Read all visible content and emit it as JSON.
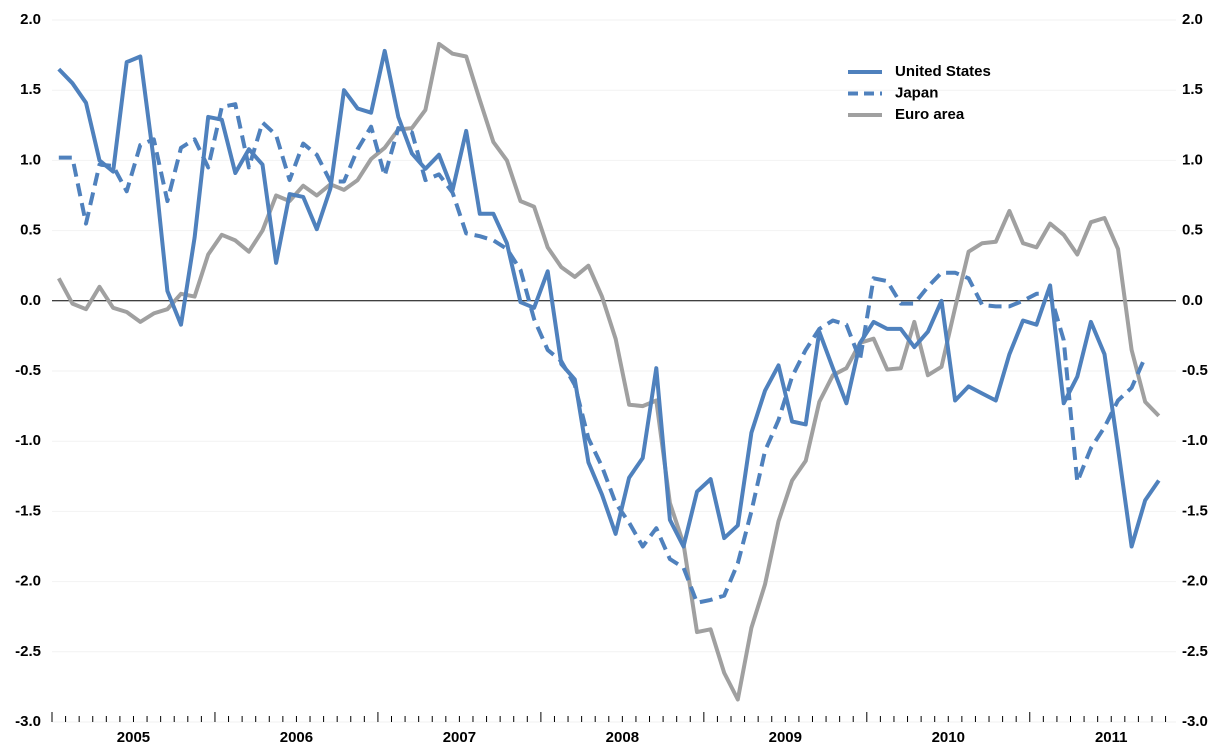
{
  "chart_data": {
    "type": "line",
    "categories": [
      "2005",
      null,
      null,
      null,
      null,
      null,
      null,
      null,
      null,
      null,
      null,
      null,
      "2006",
      null,
      null,
      null,
      null,
      null,
      null,
      null,
      null,
      null,
      null,
      null,
      "2007",
      null,
      null,
      null,
      null,
      null,
      null,
      null,
      null,
      null,
      null,
      null,
      "2008",
      null,
      null,
      null,
      null,
      null,
      null,
      null,
      null,
      null,
      null,
      null,
      "2009",
      null,
      null,
      null,
      null,
      null,
      null,
      null,
      null,
      null,
      null,
      null,
      "2010",
      null,
      null,
      null,
      null,
      null,
      null,
      null,
      null,
      null,
      null,
      null,
      "2011",
      null,
      null,
      null,
      null,
      null,
      null,
      null,
      null,
      null
    ],
    "series": [
      {
        "name": "United States",
        "color": "#4f81bd",
        "style": "solid",
        "values": [
          1.65,
          1.55,
          1.41,
          1.0,
          0.92,
          1.7,
          1.74,
          1.0,
          0.07,
          -0.17,
          0.45,
          1.31,
          1.29,
          0.91,
          1.08,
          0.97,
          0.27,
          0.76,
          0.74,
          0.51,
          0.8,
          1.5,
          1.37,
          1.34,
          1.78,
          1.31,
          1.05,
          0.94,
          1.04,
          0.79,
          1.21,
          0.62,
          0.62,
          0.41,
          -0.01,
          -0.05,
          0.21,
          -0.45,
          -0.56,
          -1.15,
          -1.38,
          -1.66,
          -1.26,
          -1.12,
          -0.48,
          -1.56,
          -1.75,
          -1.36,
          -1.27,
          -1.69,
          -1.6,
          -0.94,
          -0.64,
          -0.46,
          -0.86,
          -0.88,
          -0.22,
          -0.48,
          -0.73,
          -0.3,
          -0.15,
          -0.2,
          -0.2,
          -0.33,
          -0.22,
          0.0,
          -0.71,
          -0.61,
          -0.66,
          -0.71,
          -0.38,
          -0.14,
          -0.17,
          0.11,
          -0.73,
          -0.54,
          -0.15,
          -0.38,
          -1.05,
          -1.75,
          -1.42,
          -1.28
        ]
      },
      {
        "name": "Japan",
        "color": "#4f81bd",
        "style": "dashed",
        "values": [
          1.02,
          1.02,
          0.55,
          0.97,
          0.96,
          0.78,
          1.11,
          1.15,
          0.71,
          1.09,
          1.15,
          0.95,
          1.38,
          1.4,
          0.95,
          1.27,
          1.18,
          0.86,
          1.12,
          1.04,
          0.85,
          0.85,
          1.08,
          1.24,
          0.89,
          1.23,
          1.2,
          0.86,
          0.9,
          0.77,
          0.48,
          0.46,
          0.43,
          0.37,
          0.22,
          -0.13,
          -0.35,
          -0.43,
          -0.6,
          -0.98,
          -1.18,
          -1.44,
          -1.58,
          -1.75,
          -1.62,
          -1.84,
          -1.9,
          -2.15,
          -2.13,
          -2.1,
          -1.87,
          -1.5,
          -1.07,
          -0.85,
          -0.54,
          -0.35,
          -0.2,
          -0.14,
          -0.17,
          -0.42,
          0.16,
          0.14,
          -0.02,
          -0.02,
          0.1,
          0.2,
          0.2,
          0.16,
          -0.03,
          -0.04,
          -0.04,
          0.0,
          0.05,
          0.05,
          -0.28,
          -1.29,
          -1.05,
          -0.9,
          -0.71,
          -0.62,
          -0.4,
          null
        ]
      },
      {
        "name": "Euro area",
        "color": "#a0a0a0",
        "style": "solid",
        "values": [
          0.16,
          -0.02,
          -0.06,
          0.1,
          -0.05,
          -0.08,
          -0.15,
          -0.09,
          -0.06,
          0.05,
          0.03,
          0.33,
          0.47,
          0.43,
          0.35,
          0.5,
          0.75,
          0.71,
          0.82,
          0.75,
          0.83,
          0.79,
          0.86,
          1.01,
          1.09,
          1.22,
          1.23,
          1.36,
          1.83,
          1.76,
          1.74,
          1.43,
          1.13,
          1.0,
          0.71,
          0.67,
          0.38,
          0.24,
          0.17,
          0.25,
          0.03,
          -0.27,
          -0.74,
          -0.75,
          -0.71,
          -1.44,
          -1.73,
          -2.36,
          -2.34,
          -2.65,
          -2.84,
          -2.33,
          -2.02,
          -1.57,
          -1.28,
          -1.14,
          -0.72,
          -0.53,
          -0.48,
          -0.3,
          -0.27,
          -0.49,
          -0.48,
          -0.15,
          -0.53,
          -0.47,
          -0.05,
          0.35,
          0.41,
          0.42,
          0.64,
          0.41,
          0.38,
          0.55,
          0.47,
          0.33,
          0.56,
          0.59,
          0.37,
          -0.35,
          -0.72,
          -0.82
        ]
      }
    ],
    "ylim": [
      -3.0,
      2.0
    ],
    "yticks": [
      {
        "value": -3,
        "label": "-3.0"
      },
      {
        "value": -2.5,
        "label": "-2.5"
      },
      {
        "value": -2,
        "label": "-2.0"
      },
      {
        "value": -1.5,
        "label": "-1.5"
      },
      {
        "value": -1,
        "label": "-1.0"
      },
      {
        "value": -0.5,
        "label": "-0.5"
      },
      {
        "value": 0,
        "label": "0.0"
      },
      {
        "value": 0.5,
        "label": "0.5"
      },
      {
        "value": 1,
        "label": "1.0"
      },
      {
        "value": 1.5,
        "label": "1.5"
      },
      {
        "value": 2,
        "label": "2.0"
      }
    ],
    "grid": true
  }
}
